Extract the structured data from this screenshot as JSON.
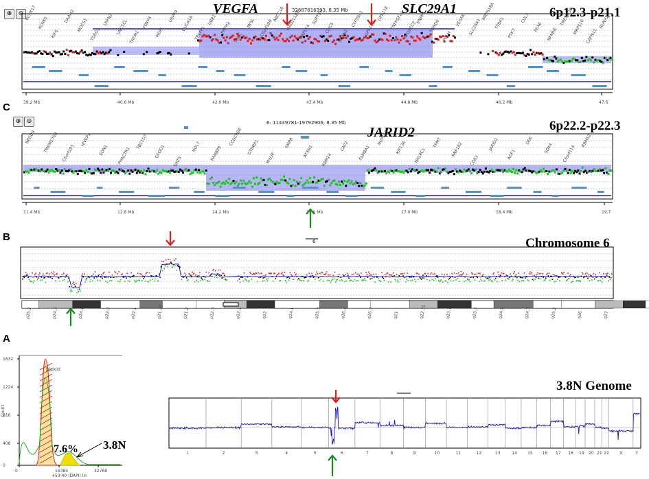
{
  "panels": {
    "top": {
      "region": "6p12.3-p21.1",
      "genes": [
        "VEGFA",
        "SLC29A1"
      ],
      "header": "32687616393, 8.35 Mb",
      "ticks": [
        "39.2 Mb",
        "40.6 Mb",
        "42.0 Mb",
        "43.4 Mb",
        "44.8 Mb",
        "46.2 Mb",
        "47.6"
      ],
      "genelabels": [
        "KCNK17",
        "KCNK5",
        "KIF6",
        "DAAM2",
        "MOCS1",
        "TDRG1",
        "LRFN2",
        "UNC5CL",
        "TREM1",
        "FOXP4",
        "MDFI",
        "USP49",
        "GUCA1A",
        "TREFF1",
        "UBR2",
        "PRPH2",
        "TBCC",
        "BYSL",
        "C6orf108",
        "ABCC10",
        "MAD2L1BP",
        "MRPL14",
        "SUPT3H",
        "CLIC5",
        "RCAN2",
        "CYP39A1",
        "GPR110",
        "GPR116",
        "TNFRSF21",
        "APOBEC2",
        "ENPP5",
        "TDRD6",
        "POLH",
        "VEGFA",
        "SLC29A1",
        "MRPS18A",
        "TTBK1",
        "PTK7",
        "CUL7",
        "PEX6",
        "NFKBIE",
        "TMEM63B",
        "MRPS10",
        "CAPN11",
        "RUNX2"
      ]
    },
    "c": {
      "label": "C",
      "region": "6p22.2-p22.3",
      "gene": "JARID2",
      "header": "6: 11439781-19792906, 8.35 Mb",
      "ticks": [
        "11.4 Mb",
        "12.8 Mb",
        "14.2 Mb",
        "15.6 Mb",
        "17.0 Mb",
        "18.4 Mb",
        "19.7"
      ],
      "genelabels": [
        "NEDD9",
        "TMEM170B",
        "C6orf105",
        "HIVEP1",
        "EDN1",
        "PHACTR1",
        "TBC1D7",
        "GFOD1",
        "SIRT5",
        "NOL7",
        "RANBP9",
        "CCDC90A",
        "DTNBP1",
        "MYLIP",
        "GMPR",
        "ATXN1",
        "RBM24",
        "CAP2",
        "FAM8A1",
        "NUP153",
        "KIF13A",
        "NHLRC1",
        "TPMT",
        "RNF182",
        "CD83",
        "JARID2",
        "AOF1",
        "DEK",
        "SOX4",
        "C6orf114",
        "RBMS2"
      ]
    },
    "b": {
      "label": "B",
      "title": "Chromosome 6",
      "scale_label": "6",
      "bands": [
        "p25.2",
        "p24.3",
        "p24.1",
        "p22.3",
        "p22.1",
        "p21.32",
        "p21.2",
        "p12.3",
        "p12.1",
        "q12",
        "q14.1",
        "q15.3",
        "q16.1",
        "q16.3",
        "q21",
        "q22.31",
        "q23.1",
        "q23.3",
        "q24.1",
        "q24.3",
        "q25.2",
        "q26",
        "q27"
      ]
    },
    "a": {
      "label": "A",
      "hist": {
        "y_axis_label": "Count",
        "y_ticks": [
          "1632",
          "1224",
          "816",
          "408",
          "0"
        ],
        "x_ticks": [
          "0",
          "16384",
          "32768"
        ],
        "x_axis_label": "450-40 (DAPI) lin",
        "peak_label": "Diploid",
        "percent": "7.6%",
        "ploidy": "3.8N"
      },
      "genome": {
        "title": "3.8N Genome",
        "chromosomes": [
          "1",
          "2",
          "3",
          "4",
          "5",
          "6",
          "7",
          "8",
          "9",
          "10",
          "11",
          "12",
          "13",
          "14",
          "15",
          "16",
          "17",
          "18",
          "19",
          "20",
          "21",
          "22",
          "X",
          "Y"
        ]
      }
    }
  },
  "colors": {
    "gain": "#e21b1b",
    "neutral": "#000000",
    "loss": "#1ec41e",
    "segment_fill": "#8f8ff0",
    "segment_line": "#1a1ad6",
    "arrow_red": "#e21b1b",
    "arrow_green": "#1a8a1a"
  }
}
